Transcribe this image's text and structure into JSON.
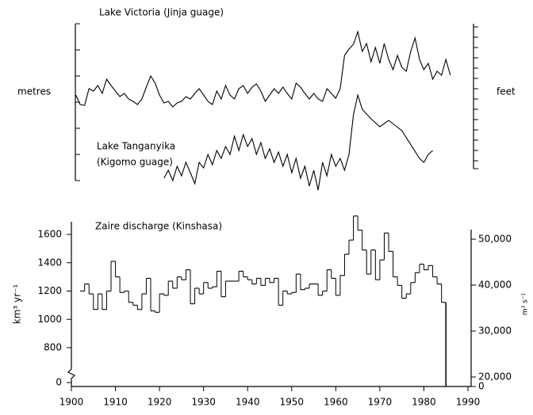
{
  "chart_data": [
    {
      "type": "line",
      "title": "Lake Victoria (Jinja guage)",
      "ylabel": "metres",
      "y2label": "feet",
      "xlim": [
        1900,
        1990
      ],
      "ylim": [
        0,
        198
      ],
      "yticks": [
        0,
        33,
        66,
        99,
        132,
        165,
        198
      ],
      "series": [
        {
          "name": "Lake Victoria (Jinja guage)",
          "color": "#000000",
          "x": [
            1901,
            1902,
            1903,
            1904,
            1905,
            1906,
            1907,
            1908,
            1909,
            1910,
            1911,
            1912,
            1913,
            1914,
            1915,
            1916,
            1917,
            1918,
            1919,
            1920,
            1921,
            1922,
            1923,
            1924,
            1925,
            1926,
            1927,
            1928,
            1929,
            1930,
            1931,
            1932,
            1933,
            1934,
            1935,
            1936,
            1937,
            1938,
            1939,
            1940,
            1941,
            1942,
            1943,
            1944,
            1945,
            1946,
            1947,
            1948,
            1949,
            1950,
            1951,
            1952,
            1953,
            1954,
            1955,
            1956,
            1957,
            1958,
            1959,
            1960,
            1961,
            1962,
            1963,
            1964,
            1965,
            1966,
            1967,
            1968,
            1969,
            1970,
            1971,
            1972,
            1973,
            1974,
            1975,
            1976,
            1977,
            1978,
            1979,
            1980,
            1981,
            1982,
            1983,
            1984,
            1985,
            1986
          ],
          "values": [
            108,
            96,
            95,
            116,
            113,
            120,
            110,
            128,
            120,
            113,
            106,
            110,
            103,
            100,
            96,
            103,
            118,
            132,
            123,
            108,
            98,
            100,
            93,
            98,
            100,
            106,
            103,
            110,
            116,
            108,
            100,
            96,
            113,
            103,
            120,
            108,
            103,
            116,
            120,
            110,
            118,
            122,
            113,
            100,
            108,
            116,
            110,
            118,
            110,
            103,
            123,
            118,
            110,
            103,
            110,
            103,
            100,
            116,
            110,
            104,
            116,
            158,
            166,
            172,
            188,
            163,
            173,
            150,
            168,
            148,
            173,
            153,
            140,
            158,
            143,
            138,
            163,
            180,
            153,
            140,
            148,
            128,
            138,
            133,
            153,
            133
          ]
        },
        {
          "name": "Lake Tanganyika",
          "subname": "(Kigomo guage)",
          "color": "#000000",
          "x": [
            1921,
            1922,
            1923,
            1924,
            1925,
            1926,
            1927,
            1928,
            1929,
            1930,
            1931,
            1932,
            1933,
            1934,
            1935,
            1936,
            1937,
            1938,
            1939,
            1940,
            1941,
            1942,
            1943,
            1944,
            1945,
            1946,
            1947,
            1948,
            1949,
            1950,
            1951,
            1952,
            1953,
            1954,
            1955,
            1956,
            1957,
            1958,
            1959,
            1960,
            1961,
            1962,
            1963,
            1964,
            1965,
            1966,
            1968,
            1970,
            1972,
            1975,
            1979,
            1980,
            1981,
            1982
          ],
          "values": [
            3,
            13,
            0,
            18,
            6,
            23,
            10,
            -4,
            23,
            16,
            33,
            20,
            38,
            28,
            43,
            33,
            56,
            38,
            58,
            43,
            53,
            33,
            48,
            28,
            40,
            23,
            36,
            18,
            33,
            10,
            28,
            3,
            18,
            -7,
            13,
            -12,
            23,
            6,
            33,
            18,
            28,
            13,
            33,
            83,
            108,
            90,
            78,
            68,
            76,
            63,
            28,
            23,
            33,
            38
          ]
        }
      ]
    },
    {
      "type": "step",
      "title": "Zaire discharge (Kinshasa)",
      "ylabel": "km³ yr⁻¹",
      "y2label": "m³ s⁻¹",
      "xlim": [
        1900,
        1990
      ],
      "xticks": [
        1900,
        1910,
        1920,
        1930,
        1940,
        1950,
        1960,
        1970,
        1980,
        1990
      ],
      "ylim": [
        0,
        1600
      ],
      "yticks": [
        0,
        800,
        1000,
        1200,
        1400,
        1600
      ],
      "y2lim": [
        0,
        50000
      ],
      "y2ticks": [
        0,
        {
          "value": 20000,
          "label": "20,000"
        },
        {
          "value": 30000,
          "label": "30,000"
        },
        {
          "value": 40000,
          "label": "40,000"
        },
        {
          "value": 50000,
          "label": "50,000"
        }
      ],
      "color": "#000000",
      "x": [
        1902,
        1903,
        1904,
        1905,
        1906,
        1907,
        1908,
        1909,
        1910,
        1911,
        1912,
        1913,
        1914,
        1915,
        1916,
        1917,
        1918,
        1919,
        1920,
        1921,
        1922,
        1923,
        1924,
        1925,
        1926,
        1927,
        1928,
        1929,
        1930,
        1931,
        1932,
        1933,
        1934,
        1935,
        1936,
        1937,
        1938,
        1939,
        1940,
        1941,
        1942,
        1943,
        1944,
        1945,
        1946,
        1947,
        1948,
        1949,
        1950,
        1951,
        1952,
        1953,
        1954,
        1955,
        1956,
        1957,
        1958,
        1959,
        1960,
        1961,
        1962,
        1963,
        1964,
        1965,
        1966,
        1967,
        1968,
        1969,
        1970,
        1971,
        1972,
        1973,
        1974,
        1975,
        1976,
        1977,
        1978,
        1979,
        1980,
        1981,
        1982,
        1983,
        1984
      ],
      "values": [
        1200,
        1250,
        1180,
        1070,
        1180,
        1070,
        1200,
        1410,
        1300,
        1190,
        1200,
        1120,
        1100,
        1070,
        1180,
        1290,
        1060,
        1050,
        1180,
        1170,
        1270,
        1220,
        1300,
        1280,
        1350,
        1110,
        1220,
        1180,
        1260,
        1220,
        1230,
        1340,
        1160,
        1270,
        1270,
        1270,
        1340,
        1300,
        1280,
        1250,
        1290,
        1240,
        1290,
        1260,
        1290,
        1100,
        1200,
        1180,
        1190,
        1320,
        1210,
        1220,
        1250,
        1250,
        1170,
        1200,
        1350,
        1290,
        1170,
        1310,
        1460,
        1560,
        1730,
        1630,
        1490,
        1320,
        1490,
        1280,
        1420,
        1610,
        1480,
        1300,
        1240,
        1150,
        1180,
        1260,
        1330,
        1390,
        1350,
        1380,
        1300,
        1250,
        1120
      ]
    }
  ]
}
